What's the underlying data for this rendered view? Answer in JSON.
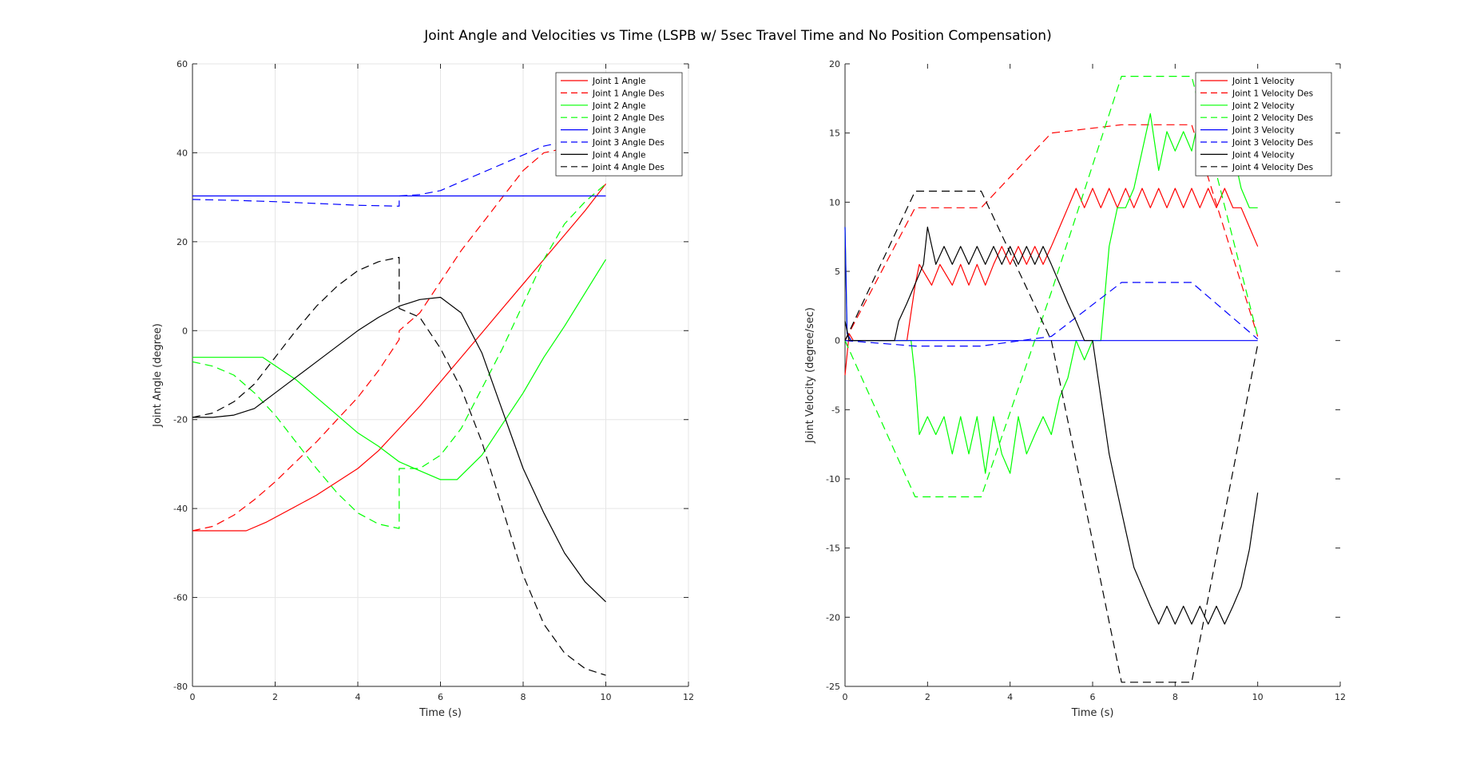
{
  "title": "Joint Angle and Velocities vs Time (LSPB w/ 5sec Travel Time and No Position Compensation)",
  "colors": {
    "red": "#ff0000",
    "green": "#00ff00",
    "blue": "#0000ff",
    "black": "#000000",
    "grid": "#e6e6e6",
    "axis": "#262626"
  },
  "chart_data": [
    {
      "type": "line",
      "xlabel": "Time (s)",
      "ylabel": "Joint Angle (degree)",
      "xlim": [
        0,
        12
      ],
      "ylim": [
        -80,
        60
      ],
      "xticks": [
        0,
        2,
        4,
        6,
        8,
        10,
        12
      ],
      "yticks": [
        -80,
        -60,
        -40,
        -20,
        0,
        20,
        40,
        60
      ],
      "grid": true,
      "legend_position": "top-right",
      "series": [
        {
          "name": "Joint 1 Angle",
          "color": "red",
          "style": "solid",
          "x": [
            0,
            1.3,
            1.8,
            2.5,
            3,
            3.5,
            4,
            4.5,
            5,
            5.5,
            6,
            6.5,
            7,
            7.5,
            8,
            8.5,
            9,
            9.5,
            10
          ],
          "y": [
            -45,
            -45,
            -43,
            -39.5,
            -37,
            -34,
            -31,
            -27,
            -22,
            -17,
            -11.5,
            -6,
            -0.5,
            5,
            10.5,
            16,
            21.5,
            27,
            33
          ]
        },
        {
          "name": "Joint 1 Angle Des",
          "color": "red",
          "style": "dashed",
          "x": [
            0,
            0.5,
            1,
            1.5,
            2,
            2.5,
            3,
            3.5,
            4,
            4.5,
            5,
            5,
            5.5,
            6,
            6.5,
            7,
            7.5,
            8,
            8.5,
            9,
            9.5,
            10
          ],
          "y": [
            -45,
            -44,
            -41.5,
            -38,
            -34,
            -29.5,
            -25,
            -20,
            -15,
            -9,
            -2,
            0,
            4,
            11,
            18,
            24,
            30,
            36,
            40,
            41,
            41.5,
            41
          ]
        },
        {
          "name": "Joint 2 Angle",
          "color": "green",
          "style": "solid",
          "x": [
            0,
            1,
            1.7,
            2.5,
            3,
            3.5,
            4,
            4.5,
            5,
            5.5,
            6,
            6.4,
            7,
            7.5,
            8,
            8.5,
            9,
            9.5,
            10
          ],
          "y": [
            -6,
            -6,
            -6,
            -11,
            -15,
            -19,
            -23,
            -26,
            -29.5,
            -31.5,
            -33.5,
            -33.5,
            -28,
            -21,
            -14,
            -6,
            1,
            8.5,
            16
          ]
        },
        {
          "name": "Joint 2 Angle Des",
          "color": "green",
          "style": "dashed",
          "x": [
            0,
            0.5,
            1,
            1.5,
            2,
            2.5,
            3,
            3.5,
            4,
            4.5,
            5,
            5,
            5.5,
            6,
            6.5,
            7,
            7.5,
            8,
            8.5,
            9,
            9.5,
            10
          ],
          "y": [
            -7,
            -8,
            -10,
            -14,
            -19,
            -25,
            -31,
            -36.5,
            -41,
            -43.5,
            -44.5,
            -31,
            -31,
            -28,
            -22,
            -13,
            -4,
            6,
            16,
            24,
            29,
            33
          ]
        },
        {
          "name": "Joint 3 Angle",
          "color": "blue",
          "style": "solid",
          "x": [
            0,
            2,
            4,
            6,
            8,
            10
          ],
          "y": [
            30.3,
            30.3,
            30.3,
            30.3,
            30.3,
            30.3
          ]
        },
        {
          "name": "Joint 3 Angle Des",
          "color": "blue",
          "style": "dashed",
          "x": [
            0,
            1,
            2,
            3,
            4,
            5,
            5,
            5.5,
            6,
            6.5,
            7,
            7.5,
            8,
            8.5,
            9,
            10
          ],
          "y": [
            29.5,
            29.3,
            29,
            28.6,
            28.2,
            28,
            30.3,
            30.6,
            31.5,
            33.5,
            35.5,
            37.5,
            39.5,
            41.5,
            42.5,
            43
          ]
        },
        {
          "name": "Joint 4 Angle",
          "color": "black",
          "style": "solid",
          "x": [
            0,
            0.5,
            1,
            1.5,
            2,
            2.5,
            3,
            3.5,
            4,
            4.5,
            5,
            5.5,
            6,
            6.5,
            7,
            7.5,
            8,
            8.5,
            9,
            9.5,
            10
          ],
          "y": [
            -19.5,
            -19.5,
            -19,
            -17.5,
            -14,
            -10.5,
            -7,
            -3.5,
            0,
            3,
            5.5,
            7,
            7.5,
            4,
            -5,
            -18,
            -31,
            -41,
            -50,
            -56.5,
            -61
          ]
        },
        {
          "name": "Joint 4 Angle Des",
          "color": "black",
          "style": "dashed",
          "x": [
            0,
            0.5,
            1,
            1.5,
            2,
            2.5,
            3,
            3.5,
            4,
            4.5,
            5,
            5,
            5.5,
            6,
            6.5,
            7,
            7.5,
            8,
            8.5,
            9,
            9.5,
            10
          ],
          "y": [
            -19.5,
            -18.5,
            -16,
            -12,
            -6,
            0,
            5.5,
            10,
            13.5,
            15.5,
            16.5,
            5,
            3,
            -4,
            -13,
            -25,
            -40,
            -55,
            -66,
            -72.5,
            -76,
            -77.5
          ]
        }
      ]
    },
    {
      "type": "line",
      "xlabel": "Time (s)",
      "ylabel": "Joint Velocity (degree/sec)",
      "xlim": [
        0,
        12
      ],
      "ylim": [
        -25,
        20
      ],
      "xticks": [
        0,
        2,
        4,
        6,
        8,
        10,
        12
      ],
      "yticks": [
        -25,
        -20,
        -15,
        -10,
        -5,
        0,
        5,
        10,
        15,
        20
      ],
      "grid": false,
      "legend_position": "top-right",
      "series": [
        {
          "name": "Joint 1 Velocity",
          "color": "red",
          "style": "solid",
          "x": [
            0,
            0.1,
            0.2,
            1.5,
            1.7,
            1.8,
            2.1,
            2.3,
            2.6,
            2.8,
            3.0,
            3.2,
            3.4,
            3.6,
            3.8,
            4.0,
            4.2,
            4.4,
            4.6,
            4.8,
            5.0,
            5.2,
            5.4,
            5.6,
            5.8,
            6.0,
            6.2,
            6.4,
            6.6,
            6.8,
            7.0,
            7.2,
            7.4,
            7.6,
            7.8,
            8.0,
            8.2,
            8.4,
            8.6,
            8.8,
            9.0,
            9.2,
            9.4,
            9.6,
            9.8,
            10.0
          ],
          "y": [
            -2.5,
            0.5,
            0,
            0,
            4,
            5.5,
            4,
            5.5,
            4,
            5.5,
            4,
            5.5,
            4,
            5.5,
            6.8,
            5.5,
            6.8,
            5.5,
            6.8,
            5.5,
            6.8,
            8.2,
            9.6,
            11,
            9.6,
            11,
            9.6,
            11,
            9.6,
            11,
            9.6,
            11,
            9.6,
            11,
            9.6,
            11,
            9.6,
            11,
            9.6,
            11,
            9.6,
            11,
            9.6,
            9.6,
            8.2,
            6.8
          ]
        },
        {
          "name": "Joint 1 Velocity Des",
          "color": "red",
          "style": "dashed",
          "x": [
            0,
            1.7,
            3.3,
            5.0,
            6.7,
            8.4,
            10.0
          ],
          "y": [
            0,
            9.6,
            9.6,
            15.0,
            15.6,
            15.6,
            0.3
          ]
        },
        {
          "name": "Joint 2 Velocity",
          "color": "green",
          "style": "solid",
          "x": [
            0,
            0.05,
            0.15,
            1.6,
            1.7,
            1.8,
            2.0,
            2.2,
            2.4,
            2.6,
            2.8,
            3.0,
            3.2,
            3.4,
            3.6,
            3.8,
            4.0,
            4.2,
            4.4,
            4.6,
            4.8,
            5.0,
            5.2,
            5.4,
            5.6,
            5.8,
            6.0,
            6.2,
            6.4,
            6.6,
            6.8,
            7.0,
            7.2,
            7.4,
            7.6,
            7.8,
            8.0,
            8.2,
            8.4,
            8.6,
            8.8,
            9.0,
            9.2,
            9.4,
            9.6,
            9.8,
            10.0
          ],
          "y": [
            8.2,
            0.5,
            0,
            0,
            -2.7,
            -6.8,
            -5.5,
            -6.8,
            -5.5,
            -8.2,
            -5.5,
            -8.2,
            -5.5,
            -9.6,
            -5.5,
            -8.2,
            -9.6,
            -5.5,
            -8.2,
            -6.8,
            -5.5,
            -6.8,
            -4.1,
            -2.7,
            0,
            -1.4,
            0,
            0,
            6.8,
            9.6,
            9.6,
            11.0,
            13.7,
            16.4,
            12.3,
            15.1,
            13.7,
            15.1,
            13.7,
            16.4,
            13.7,
            15.1,
            12.3,
            13.7,
            11.0,
            9.6,
            9.6
          ]
        },
        {
          "name": "Joint 2 Velocity Des",
          "color": "green",
          "style": "dashed",
          "x": [
            0,
            1.7,
            3.3,
            5.0,
            6.7,
            8.4,
            10.0
          ],
          "y": [
            0,
            -11.3,
            -11.3,
            3.5,
            19.1,
            19.1,
            0.3
          ]
        },
        {
          "name": "Joint 3 Velocity",
          "color": "blue",
          "style": "solid",
          "x": [
            0,
            0.05,
            0.15,
            2,
            4,
            6,
            8,
            10
          ],
          "y": [
            8.2,
            0.5,
            0,
            0,
            0,
            0,
            0,
            0
          ]
        },
        {
          "name": "Joint 3 Velocity Des",
          "color": "blue",
          "style": "dashed",
          "x": [
            0,
            1.7,
            3.3,
            5.0,
            6.7,
            8.4,
            10.0
          ],
          "y": [
            0,
            -0.4,
            -0.4,
            0.3,
            4.2,
            4.2,
            0.1
          ]
        },
        {
          "name": "Joint 4 Velocity",
          "color": "black",
          "style": "solid",
          "x": [
            0,
            0.1,
            1.2,
            1.3,
            1.5,
            1.7,
            1.9,
            2.0,
            2.2,
            2.4,
            2.6,
            2.8,
            3.0,
            3.2,
            3.4,
            3.6,
            3.8,
            4.0,
            4.2,
            4.4,
            4.6,
            4.8,
            5.0,
            5.2,
            5.4,
            5.6,
            5.8,
            6.0,
            6.2,
            6.4,
            6.6,
            6.8,
            7.0,
            7.2,
            7.4,
            7.6,
            7.8,
            8.0,
            8.2,
            8.4,
            8.6,
            8.8,
            9.0,
            9.2,
            9.4,
            9.6,
            9.8,
            10.0
          ],
          "y": [
            1.4,
            0,
            0,
            1.4,
            2.7,
            4.1,
            5.5,
            8.2,
            5.5,
            6.8,
            5.5,
            6.8,
            5.5,
            6.8,
            5.5,
            6.8,
            5.5,
            6.8,
            5.5,
            6.8,
            5.5,
            6.8,
            5.5,
            4.1,
            2.7,
            1.4,
            0,
            0,
            -4.1,
            -8.2,
            -11.0,
            -13.7,
            -16.4,
            -17.8,
            -19.2,
            -20.5,
            -19.2,
            -20.5,
            -19.2,
            -20.5,
            -19.2,
            -20.5,
            -19.2,
            -20.5,
            -19.2,
            -17.8,
            -15.1,
            -11.0
          ]
        },
        {
          "name": "Joint 4 Velocity Des",
          "color": "black",
          "style": "dashed",
          "x": [
            0,
            1.7,
            3.3,
            5.0,
            6.7,
            8.4,
            10.0
          ],
          "y": [
            0,
            10.8,
            10.8,
            0,
            -24.7,
            -24.7,
            -0.3
          ]
        }
      ]
    }
  ]
}
